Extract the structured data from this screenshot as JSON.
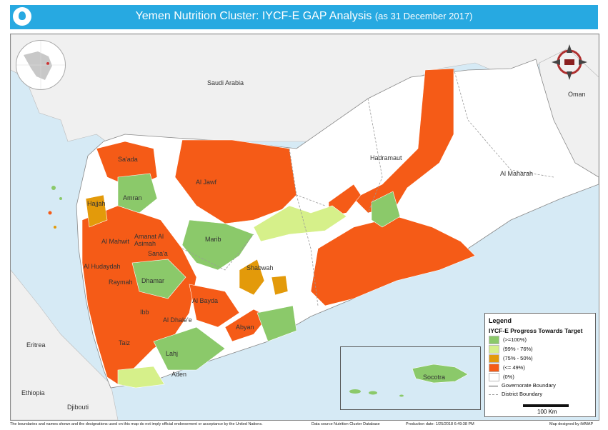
{
  "title": {
    "main": "Yemen Nutrition Cluster: IYCF-E GAP Analysis",
    "sub": "(as 31 December 2017)"
  },
  "map": {
    "icons": [
      "cluster-logo-icon",
      "globe-locator-icon",
      "north-arrow-icon"
    ],
    "countries": {
      "saudi_arabia": "Saudi Arabia",
      "oman": "Oman",
      "eritrea": "Eritrea",
      "ethiopia": "Ethiopia",
      "djibouti": "Djibouti"
    },
    "governorates": {
      "saada": "Sa'ada",
      "al_jawf": "Al Jawf",
      "hadramaut": "Hadramaut",
      "al_maharah": "Al Maharah",
      "hajjah": "Hajjah",
      "amran": "Amran",
      "amanat_al_asimah": "Amanat Al Asimah",
      "al_mahwit": "Al Mahwit",
      "sanaa": "Sana'a",
      "marib": "Marib",
      "shabwah": "Shabwah",
      "al_hudaydah": "Al Hudaydah",
      "raymah": "Raymah",
      "dhamar": "Dhamar",
      "al_bayda": "Al Bayda",
      "ibb": "Ibb",
      "al_dhalee": "Al Dhale'e",
      "abyan": "Abyan",
      "taiz": "Taiz",
      "lahj": "Lahj",
      "aden": "Aden",
      "socotra": "Socotra"
    }
  },
  "legend": {
    "title": "Legend",
    "subtitle": "IYCF-E Progress Towards Target",
    "classes": [
      {
        "label": "(>=100%)",
        "color": "#8bc96a"
      },
      {
        "label": "(99% - 76%)",
        "color": "#d6f08a"
      },
      {
        "label": "(75% - 50%)",
        "color": "#e39a0a"
      },
      {
        "label": "(<= 49%)",
        "color": "#f55b17"
      },
      {
        "label": "(0%)",
        "color": "#ffffff"
      }
    ],
    "lines": [
      {
        "label": "Governorate Boundary"
      },
      {
        "label": "District Boundary"
      }
    ],
    "scale": "100 Km"
  },
  "footer": {
    "disclaimer": "The boundaries and names shown and the designations used on this map do not imply official endorsement or acceptance by the United Nations.",
    "source": "Data source Nutrition Cluster Database",
    "production": "Production date: 1/25/2018 6:49:38 PM",
    "credit": "Map designed by iMMAP"
  }
}
